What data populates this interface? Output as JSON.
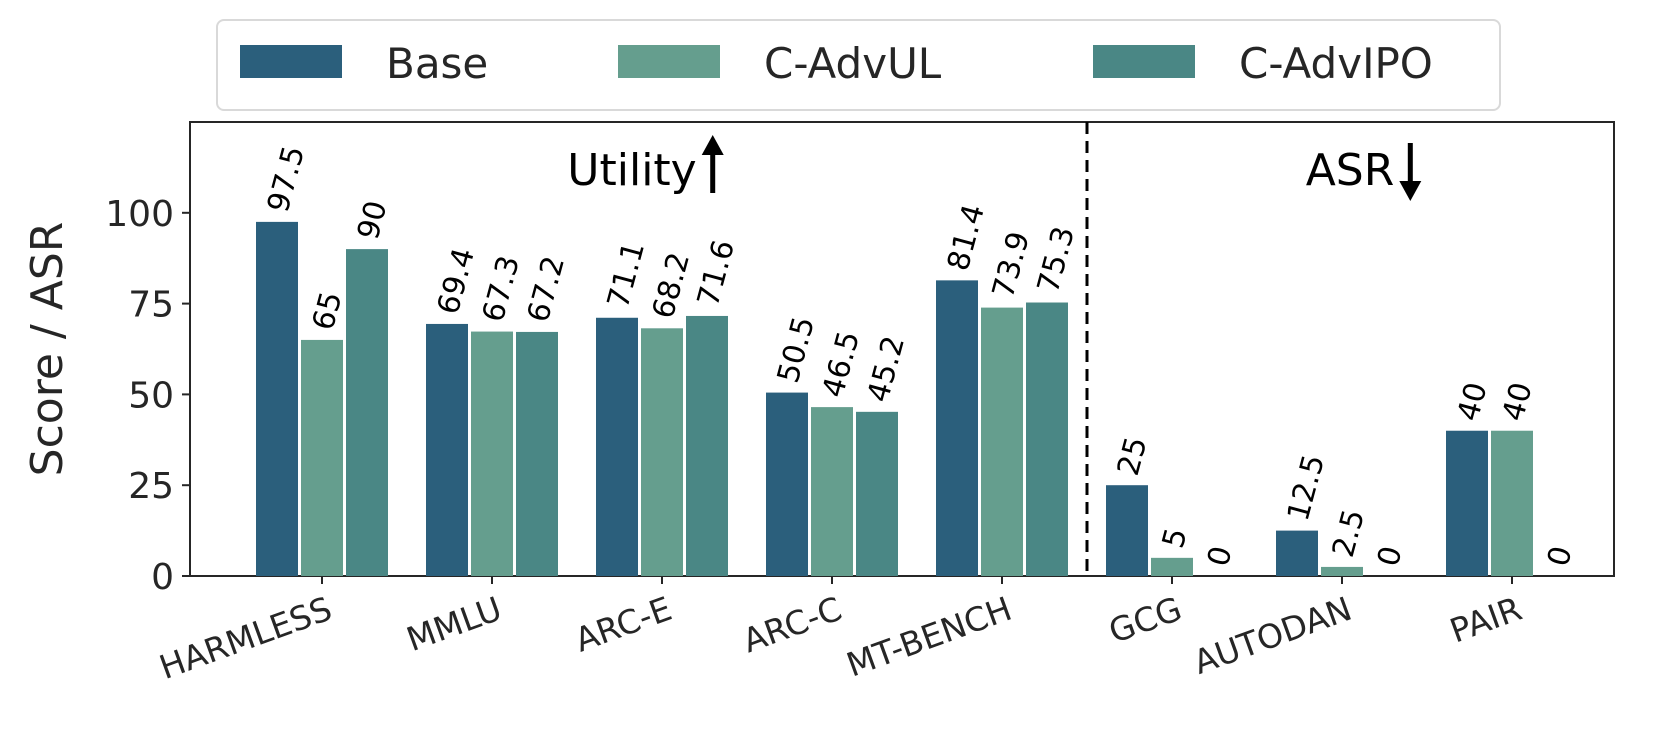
{
  "chart_data": {
    "type": "bar",
    "ylabel": "Score / ASR",
    "ylim": [
      0,
      125
    ],
    "yticks": [
      0,
      25,
      50,
      75,
      100
    ],
    "categories": [
      "HARMLESS",
      "MMLU",
      "ARC-E",
      "ARC-C",
      "MT-BENCH",
      "GCG",
      "AUTODAN",
      "PAIR"
    ],
    "series": [
      {
        "name": "Base",
        "color": "#2b5f7c",
        "values": [
          97.5,
          69.4,
          71.1,
          50.5,
          81.4,
          25,
          12.5,
          40
        ],
        "labels": [
          "97.5",
          "69.4",
          "71.1",
          "50.5",
          "81.4",
          "25",
          "12.5",
          "40"
        ]
      },
      {
        "name": "C-AdvUL",
        "color": "#659e8e",
        "values": [
          65,
          67.3,
          68.2,
          46.5,
          73.9,
          5,
          2.5,
          40
        ],
        "labels": [
          "65",
          "67.3",
          "68.2",
          "46.5",
          "73.9",
          "5",
          "2.5",
          "40"
        ]
      },
      {
        "name": "C-AdvIPO",
        "color": "#4a8785",
        "values": [
          90,
          67.2,
          71.6,
          45.2,
          75.3,
          0,
          0,
          0
        ],
        "labels": [
          "90",
          "67.2",
          "71.6",
          "45.2",
          "75.3",
          "0",
          "0",
          "0"
        ]
      }
    ],
    "regions": [
      {
        "label": "Utility",
        "arrow": "up"
      },
      {
        "label": "ASR",
        "arrow": "down"
      }
    ],
    "divider_after_category": "MT-BENCH",
    "legend_position": "top-center",
    "grid": false
  }
}
